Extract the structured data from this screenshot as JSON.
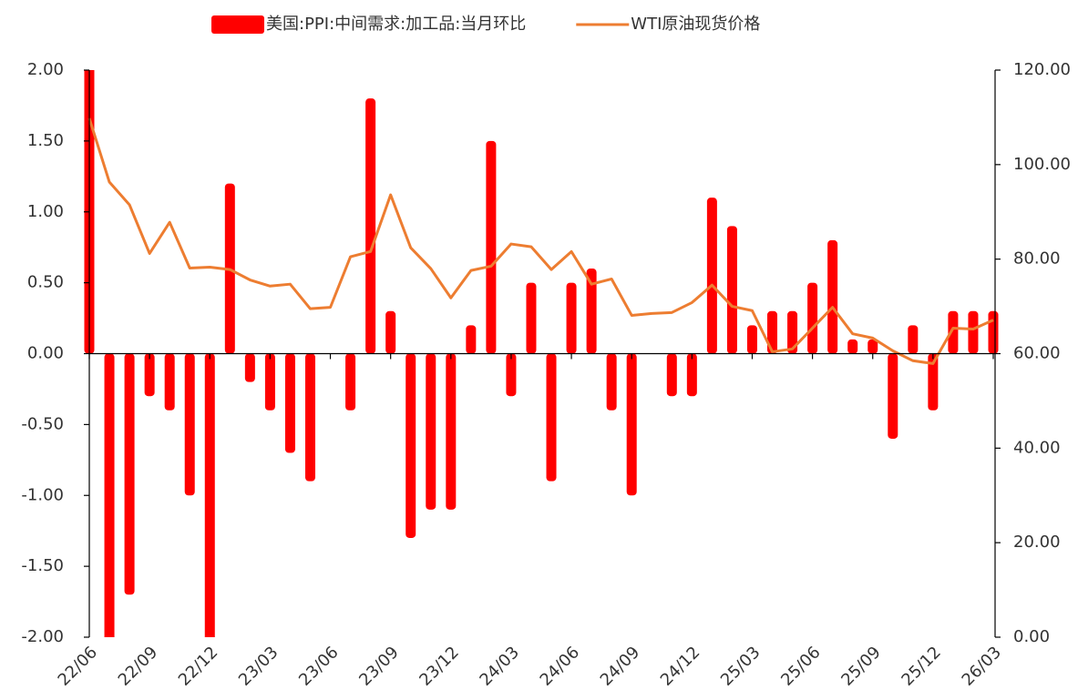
{
  "chart_data": {
    "type": "bar-line",
    "categories": [
      "22/06",
      null,
      null,
      "22/09",
      null,
      null,
      "22/12",
      null,
      null,
      "23/03",
      null,
      null,
      "23/06",
      null,
      null,
      "23/09",
      null,
      null,
      "23/12",
      null,
      null,
      "24/03",
      null,
      null,
      "24/06",
      null,
      null,
      "24/09",
      null,
      null,
      "24/12",
      null,
      null,
      "25/03",
      null,
      null,
      "25/06",
      null,
      null,
      "25/09",
      null,
      null,
      "25/12",
      null,
      null,
      "26/03"
    ],
    "series": [
      {
        "name": "美国:PPI:中间需求:加工品:当月环比",
        "type": "bar",
        "color": "#ff0000",
        "values": [
          2.3,
          -2.4,
          -1.7,
          -0.3,
          -0.4,
          -1.0,
          -2.6,
          1.2,
          -0.2,
          -0.4,
          -0.7,
          -0.9,
          0,
          -0.4,
          1.8,
          0.3,
          -1.3,
          -1.1,
          -1.1,
          0.2,
          1.5,
          -0.3,
          0.5,
          -0.9,
          0.5,
          0.6,
          -0.4,
          -1.0,
          0,
          -0.3,
          -0.3,
          1.1,
          0.9,
          0.2,
          0.3,
          0.3,
          0.5,
          0.8,
          0.1,
          0.1,
          -0.6,
          0.2,
          -0.4,
          0.3,
          0.3,
          0.3
        ]
      },
      {
        "name": "WTI原油现货价格",
        "type": "line",
        "axis": "y2",
        "color": "#ed7d31",
        "values": [
          109.8,
          96.3,
          91.5,
          81.2,
          87.8,
          78.1,
          78.3,
          77.8,
          75.6,
          74.3,
          74.7,
          69.5,
          69.8,
          80.5,
          81.6,
          93.6,
          82.4,
          78.0,
          71.8,
          77.6,
          78.5,
          83.2,
          82.6,
          77.8,
          81.6,
          74.7,
          75.8,
          68.1,
          68.5,
          68.7,
          70.8,
          74.5,
          70.0,
          69.1,
          60.4,
          61.0,
          65.4,
          69.8,
          64.2,
          63.3,
          60.6,
          58.5,
          57.9,
          65.4,
          65.2,
          67.1
        ]
      }
    ],
    "ylim": [
      -2,
      2
    ],
    "yticks": [
      {
        "value": -2,
        "label": "-2.00"
      },
      {
        "value": -1.5,
        "label": "-1.50"
      },
      {
        "value": -1,
        "label": "-1.00"
      },
      {
        "value": -0.5,
        "label": "-0.50"
      },
      {
        "value": 0,
        "label": "0.00"
      },
      {
        "value": 0.5,
        "label": "0.50"
      },
      {
        "value": 1,
        "label": "1.00"
      },
      {
        "value": 1.5,
        "label": "1.50"
      },
      {
        "value": 2,
        "label": "2.00"
      }
    ],
    "y2lim": [
      0,
      120
    ],
    "y2ticks": [
      {
        "value": 0,
        "label": "0.00"
      },
      {
        "value": 20,
        "label": "20.00"
      },
      {
        "value": 40,
        "label": "40.00"
      },
      {
        "value": 60,
        "label": "60.00"
      },
      {
        "value": 80,
        "label": "80.00"
      },
      {
        "value": 100,
        "label": "100.00"
      },
      {
        "value": 120,
        "label": "120.00"
      }
    ],
    "legend": "top"
  }
}
